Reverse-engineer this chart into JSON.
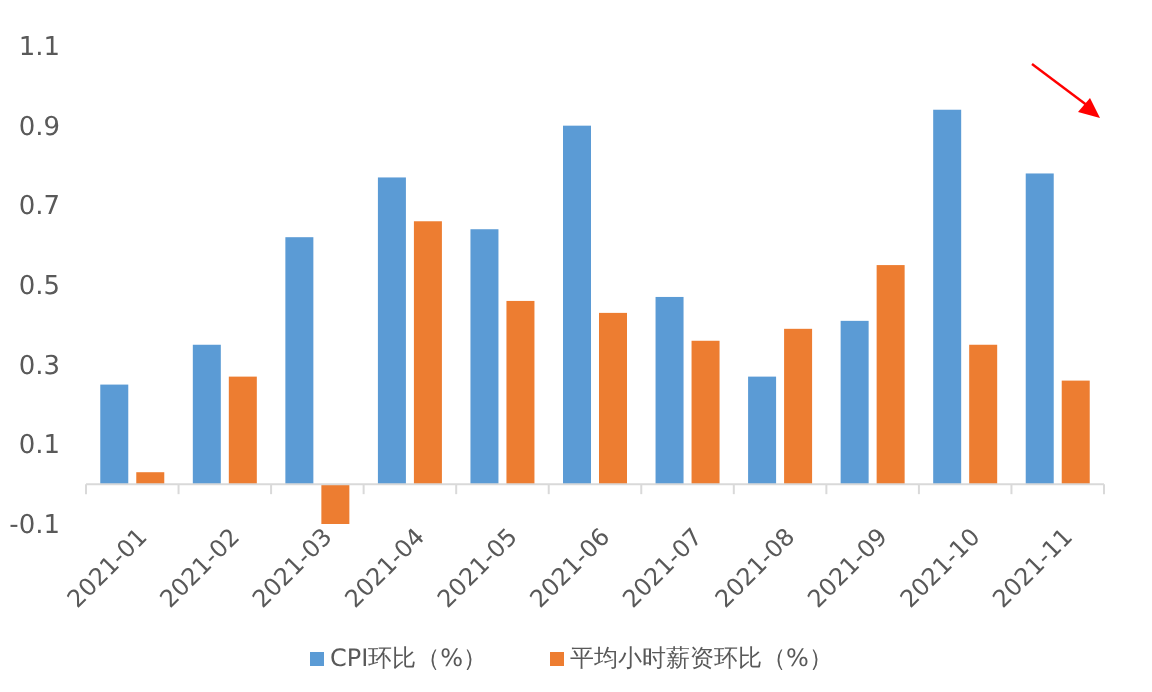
{
  "chart_data": {
    "type": "bar",
    "categories": [
      "2021-01",
      "2021-02",
      "2021-03",
      "2021-04",
      "2021-05",
      "2021-06",
      "2021-07",
      "2021-08",
      "2021-09",
      "2021-10",
      "2021-11"
    ],
    "series": [
      {
        "name": "CPI环比（%）",
        "color": "#5b9bd5",
        "values": [
          0.25,
          0.35,
          0.62,
          0.77,
          0.64,
          0.9,
          0.47,
          0.27,
          0.41,
          0.94,
          0.78
        ]
      },
      {
        "name": "平均小时薪资环比（%）",
        "color": "#ed7d31",
        "values": [
          0.03,
          0.27,
          -0.1,
          0.66,
          0.46,
          0.43,
          0.36,
          0.39,
          0.55,
          0.35,
          0.26
        ]
      }
    ],
    "ylim": [
      -0.1,
      1.1
    ],
    "yticks": [
      -0.1,
      0.1,
      0.3,
      0.5,
      0.7,
      0.9,
      1.1
    ],
    "grid": false,
    "legend": "bottom"
  }
}
